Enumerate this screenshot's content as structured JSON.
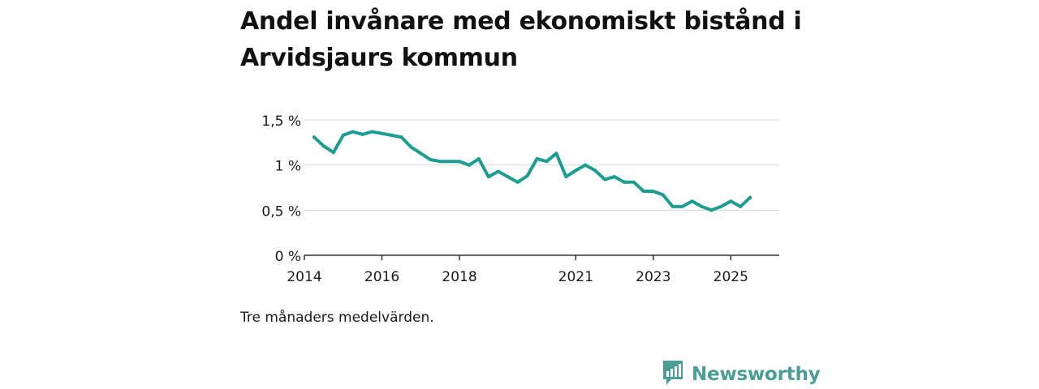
{
  "title": "Andel invånare med ekonomiskt bistånd i Arvidsjaurs kommun",
  "note": "Tre månaders medelvärden.",
  "brand": {
    "name": "Newsworthy",
    "icon": "newsworthy-logo-icon",
    "color": "#4a9e96"
  },
  "colors": {
    "line": "#1a9e8f",
    "grid": "#d9d9d9",
    "axis": "#333333"
  },
  "chart_data": {
    "type": "line",
    "title": "Andel invånare med ekonomiskt bistånd i Arvidsjaurs kommun",
    "xlabel": "",
    "ylabel": "",
    "ylim": [
      0,
      1.5
    ],
    "xlim": [
      2014.0,
      2026.25
    ],
    "yticks": [
      0,
      0.5,
      1,
      1.5
    ],
    "ytick_labels": [
      "0 %",
      "0,5 %",
      "1 %",
      "1,5 %"
    ],
    "xticks": [
      2014,
      2016,
      2018,
      2021,
      2023,
      2025
    ],
    "xtick_labels": [
      "2014",
      "2016",
      "2018",
      "2021",
      "2023",
      "2025"
    ],
    "grid": true,
    "legend": "none",
    "series": [
      {
        "values": [
          {
            "x": 2014.25,
            "y": 1.31
          },
          {
            "x": 2014.5,
            "y": 1.21
          },
          {
            "x": 2014.75,
            "y": 1.14
          },
          {
            "x": 2015.0,
            "y": 1.33
          },
          {
            "x": 2015.25,
            "y": 1.37
          },
          {
            "x": 2015.5,
            "y": 1.34
          },
          {
            "x": 2015.75,
            "y": 1.37
          },
          {
            "x": 2016.0,
            "y": 1.35
          },
          {
            "x": 2016.25,
            "y": 1.33
          },
          {
            "x": 2016.5,
            "y": 1.31
          },
          {
            "x": 2016.75,
            "y": 1.2
          },
          {
            "x": 2017.0,
            "y": 1.13
          },
          {
            "x": 2017.25,
            "y": 1.06
          },
          {
            "x": 2017.5,
            "y": 1.04
          },
          {
            "x": 2017.75,
            "y": 1.04
          },
          {
            "x": 2018.0,
            "y": 1.04
          },
          {
            "x": 2018.25,
            "y": 1.0
          },
          {
            "x": 2018.5,
            "y": 1.07
          },
          {
            "x": 2018.75,
            "y": 0.87
          },
          {
            "x": 2019.0,
            "y": 0.93
          },
          {
            "x": 2019.25,
            "y": 0.87
          },
          {
            "x": 2019.5,
            "y": 0.81
          },
          {
            "x": 2019.75,
            "y": 0.88
          },
          {
            "x": 2020.0,
            "y": 1.07
          },
          {
            "x": 2020.25,
            "y": 1.04
          },
          {
            "x": 2020.5,
            "y": 1.13
          },
          {
            "x": 2020.75,
            "y": 0.87
          },
          {
            "x": 2021.0,
            "y": 0.94
          },
          {
            "x": 2021.25,
            "y": 1.0
          },
          {
            "x": 2021.5,
            "y": 0.94
          },
          {
            "x": 2021.75,
            "y": 0.84
          },
          {
            "x": 2022.0,
            "y": 0.87
          },
          {
            "x": 2022.25,
            "y": 0.81
          },
          {
            "x": 2022.5,
            "y": 0.81
          },
          {
            "x": 2022.75,
            "y": 0.71
          },
          {
            "x": 2023.0,
            "y": 0.71
          },
          {
            "x": 2023.25,
            "y": 0.67
          },
          {
            "x": 2023.5,
            "y": 0.54
          },
          {
            "x": 2023.75,
            "y": 0.54
          },
          {
            "x": 2024.0,
            "y": 0.6
          },
          {
            "x": 2024.25,
            "y": 0.54
          },
          {
            "x": 2024.5,
            "y": 0.5
          },
          {
            "x": 2024.75,
            "y": 0.54
          },
          {
            "x": 2025.0,
            "y": 0.6
          },
          {
            "x": 2025.25,
            "y": 0.54
          },
          {
            "x": 2025.5,
            "y": 0.64
          }
        ]
      }
    ]
  }
}
